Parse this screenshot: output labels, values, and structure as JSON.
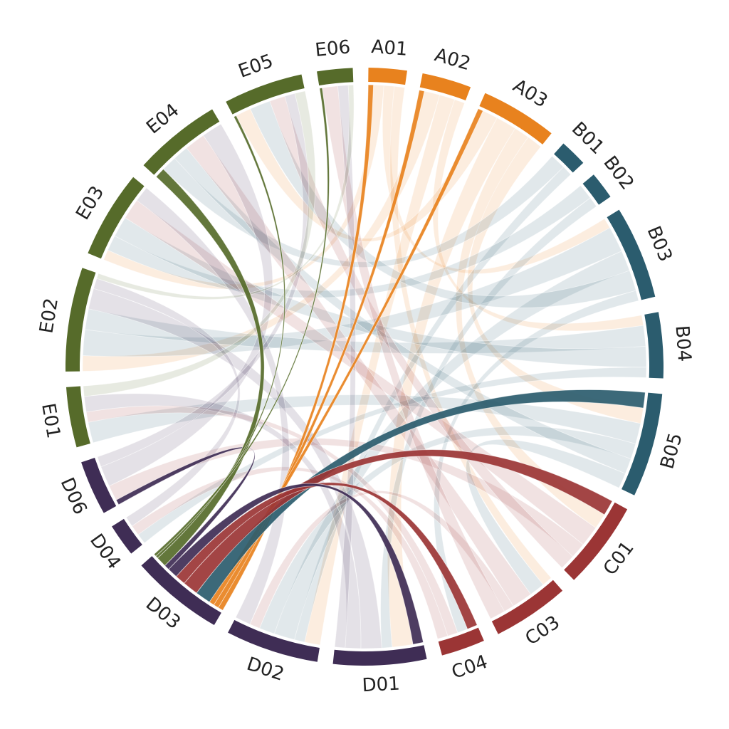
{
  "chart_data": {
    "type": "chord",
    "highlight": "D03",
    "nodes": [
      {
        "name": "A01",
        "color": "#e8821e"
      },
      {
        "name": "A02",
        "color": "#e8821e"
      },
      {
        "name": "A03",
        "color": "#e8821e"
      },
      {
        "name": "B01",
        "color": "#2b5c6e"
      },
      {
        "name": "B02",
        "color": "#2b5c6e"
      },
      {
        "name": "B03",
        "color": "#2b5c6e"
      },
      {
        "name": "B04",
        "color": "#2b5c6e"
      },
      {
        "name": "B05",
        "color": "#2b5c6e"
      },
      {
        "name": "C01",
        "color": "#9b3535"
      },
      {
        "name": "C03",
        "color": "#9b3535"
      },
      {
        "name": "C04",
        "color": "#9b3535"
      },
      {
        "name": "D01",
        "color": "#3f2d55"
      },
      {
        "name": "D02",
        "color": "#3f2d55"
      },
      {
        "name": "D03",
        "color": "#3f2d55"
      },
      {
        "name": "D04",
        "color": "#3f2d55"
      },
      {
        "name": "D06",
        "color": "#3f2d55"
      },
      {
        "name": "E01",
        "color": "#566b2a"
      },
      {
        "name": "E02",
        "color": "#566b2a"
      },
      {
        "name": "E03",
        "color": "#566b2a"
      },
      {
        "name": "E04",
        "color": "#566b2a"
      },
      {
        "name": "E05",
        "color": "#566b2a"
      },
      {
        "name": "E06",
        "color": "#566b2a"
      }
    ],
    "links": [
      {
        "source": "A01",
        "target": "D03",
        "value": 1
      },
      {
        "source": "A02",
        "target": "D03",
        "value": 1
      },
      {
        "source": "A03",
        "target": "D03",
        "value": 1
      },
      {
        "source": "B05",
        "target": "D03",
        "value": 3
      },
      {
        "source": "C01",
        "target": "D03",
        "value": 3
      },
      {
        "source": "C04",
        "target": "D03",
        "value": 2
      },
      {
        "source": "D01",
        "target": "D03",
        "value": 2
      },
      {
        "source": "D06",
        "target": "D03",
        "value": 1
      },
      {
        "source": "E04",
        "target": "D03",
        "value": 2
      },
      {
        "source": "E05",
        "target": "D03",
        "value": 0.5
      },
      {
        "source": "E06",
        "target": "D03",
        "value": 0.5
      },
      {
        "source": "A01",
        "target": "E03",
        "value": 2
      },
      {
        "source": "A01",
        "target": "B03",
        "value": 2
      },
      {
        "source": "A01",
        "target": "C03",
        "value": 2
      },
      {
        "source": "A02",
        "target": "E02",
        "value": 3
      },
      {
        "source": "A02",
        "target": "D02",
        "value": 3
      },
      {
        "source": "A02",
        "target": "B04",
        "value": 2
      },
      {
        "source": "A03",
        "target": "E05",
        "value": 3
      },
      {
        "source": "A03",
        "target": "D01",
        "value": 4
      },
      {
        "source": "A03",
        "target": "C01",
        "value": 3
      },
      {
        "source": "A03",
        "target": "B05",
        "value": 3
      },
      {
        "source": "B01",
        "target": "E04",
        "value": 3
      },
      {
        "source": "B01",
        "target": "D02",
        "value": 2
      },
      {
        "source": "B02",
        "target": "E03",
        "value": 3
      },
      {
        "source": "B02",
        "target": "D01",
        "value": 2
      },
      {
        "source": "B03",
        "target": "E02",
        "value": 5
      },
      {
        "source": "B03",
        "target": "D02",
        "value": 4
      },
      {
        "source": "B03",
        "target": "E05",
        "value": 4
      },
      {
        "source": "B03",
        "target": "C04",
        "value": 2
      },
      {
        "source": "B04",
        "target": "E02",
        "value": 4
      },
      {
        "source": "B04",
        "target": "E03",
        "value": 4
      },
      {
        "source": "B04",
        "target": "D04",
        "value": 2
      },
      {
        "source": "B05",
        "target": "E01",
        "value": 4
      },
      {
        "source": "B05",
        "target": "D02",
        "value": 3
      },
      {
        "source": "B05",
        "target": "E04",
        "value": 3
      },
      {
        "source": "B05",
        "target": "C03",
        "value": 3
      },
      {
        "source": "C01",
        "target": "E03",
        "value": 4
      },
      {
        "source": "C01",
        "target": "D06",
        "value": 3
      },
      {
        "source": "C01",
        "target": "E05",
        "value": 3
      },
      {
        "source": "C03",
        "target": "E04",
        "value": 4
      },
      {
        "source": "C03",
        "target": "D02",
        "value": 2
      },
      {
        "source": "C03",
        "target": "E06",
        "value": 3
      },
      {
        "source": "C04",
        "target": "E01",
        "value": 2
      },
      {
        "source": "C04",
        "target": "D04",
        "value": 2
      },
      {
        "source": "D01",
        "target": "E02",
        "value": 4
      },
      {
        "source": "D01",
        "target": "E01",
        "value": 3
      },
      {
        "source": "D01",
        "target": "E06",
        "value": 2
      },
      {
        "source": "D02",
        "target": "E03",
        "value": 3
      },
      {
        "source": "D04",
        "target": "E02",
        "value": 2
      },
      {
        "source": "D06",
        "target": "E04",
        "value": 4
      },
      {
        "source": "D06",
        "target": "E05",
        "value": 2
      },
      {
        "source": "E01",
        "target": "E05",
        "value": 2
      },
      {
        "source": "E02",
        "target": "E06",
        "value": 1
      }
    ]
  }
}
